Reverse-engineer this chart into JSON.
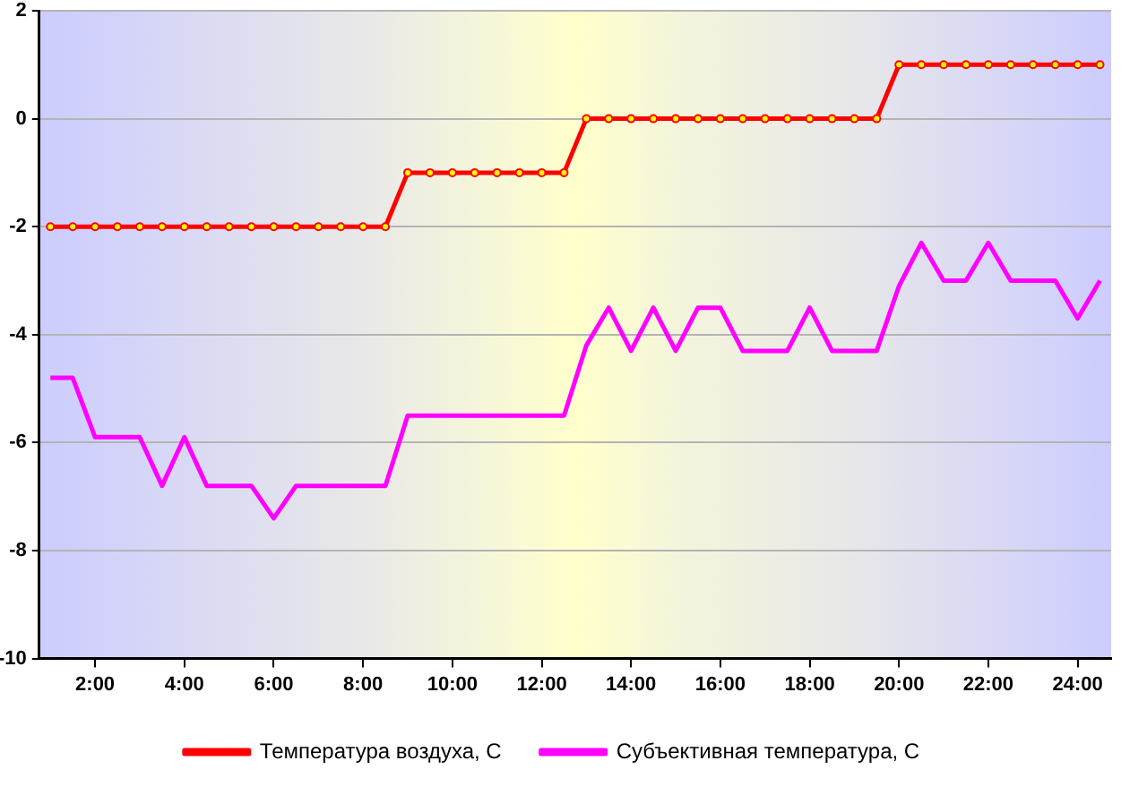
{
  "chart_data": {
    "type": "line",
    "x": [
      1,
      1.5,
      2,
      2.5,
      3,
      3.5,
      4,
      4.5,
      5,
      5.5,
      6,
      6.5,
      7,
      7.5,
      8,
      8.5,
      9,
      9.5,
      10,
      10.5,
      11,
      11.5,
      12,
      12.5,
      13,
      13.5,
      14,
      14.5,
      15,
      15.5,
      16,
      16.5,
      17,
      17.5,
      18,
      18.5,
      19,
      19.5,
      20,
      20.5,
      21,
      21.5,
      22,
      22.5,
      23,
      23.5,
      24,
      24.5
    ],
    "series": [
      {
        "name": "Температура воздуха, C",
        "color": "#ff0000",
        "marker": "circle",
        "values": [
          -2,
          -2,
          -2,
          -2,
          -2,
          -2,
          -2,
          -2,
          -2,
          -2,
          -2,
          -2,
          -2,
          -2,
          -2,
          -2,
          -1,
          -1,
          -1,
          -1,
          -1,
          -1,
          -1,
          -1,
          0,
          0,
          0,
          0,
          0,
          0,
          0,
          0,
          0,
          0,
          0,
          0,
          0,
          0,
          1,
          1,
          1,
          1,
          1,
          1,
          1,
          1,
          1,
          1
        ]
      },
      {
        "name": "Субъективная температура, C",
        "color": "#ff00ff",
        "marker": "none",
        "values": [
          -4.8,
          -4.8,
          -5.9,
          -5.9,
          -5.9,
          -6.8,
          -5.9,
          -6.8,
          -6.8,
          -6.8,
          -7.4,
          -6.8,
          -6.8,
          -6.8,
          -6.8,
          -6.8,
          -5.5,
          -5.5,
          -5.5,
          -5.5,
          -5.5,
          -5.5,
          -5.5,
          -5.5,
          -4.2,
          -3.5,
          -4.3,
          -3.5,
          -4.3,
          -3.5,
          -3.5,
          -4.3,
          -4.3,
          -4.3,
          -3.5,
          -4.3,
          -4.3,
          -4.3,
          -3.1,
          -2.3,
          -3.0,
          -3.0,
          -2.3,
          -3.0,
          -3.0,
          -3.0,
          -3.7,
          -3.0
        ]
      }
    ],
    "xlim": [
      0.75,
      24.75
    ],
    "xticks": [
      {
        "value": 2,
        "label": "2:00"
      },
      {
        "value": 4,
        "label": "4:00"
      },
      {
        "value": 6,
        "label": "6:00"
      },
      {
        "value": 8,
        "label": "8:00"
      },
      {
        "value": 10,
        "label": "10:00"
      },
      {
        "value": 12,
        "label": "12:00"
      },
      {
        "value": 14,
        "label": "14:00"
      },
      {
        "value": 16,
        "label": "16:00"
      },
      {
        "value": 18,
        "label": "18:00"
      },
      {
        "value": 20,
        "label": "20:00"
      },
      {
        "value": 22,
        "label": "22:00"
      },
      {
        "value": 24,
        "label": "24:00"
      }
    ],
    "ylim": [
      -10,
      2
    ],
    "yticks": [
      -10,
      -8,
      -6,
      -4,
      -2,
      0,
      2
    ],
    "grid": "y",
    "legend": "bottom",
    "line_style": "solid"
  }
}
